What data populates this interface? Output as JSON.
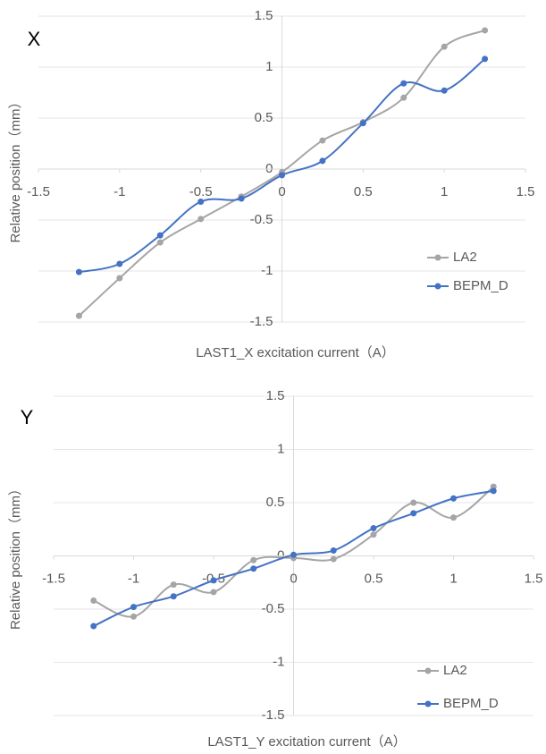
{
  "chart_data": [
    {
      "type": "line",
      "title": "X",
      "xlabel": "LAST1_X excitation current（A）",
      "ylabel": "Relative position（mm）",
      "x": [
        -1.25,
        -1,
        -0.75,
        -0.5,
        -0.25,
        0,
        0.25,
        0.5,
        0.75,
        1,
        1.25
      ],
      "series": [
        {
          "name": "LA2",
          "color": "#a5a5a5",
          "values": [
            -1.44,
            -1.07,
            -0.72,
            -0.49,
            -0.27,
            -0.03,
            0.28,
            0.46,
            0.7,
            1.2,
            1.36
          ]
        },
        {
          "name": "BEPM_D",
          "color": "#4472c4",
          "values": [
            -1.01,
            -0.93,
            -0.65,
            -0.32,
            -0.29,
            -0.06,
            0.08,
            0.45,
            0.84,
            0.77,
            1.08
          ]
        }
      ],
      "xlim": [
        -1.5,
        1.5
      ],
      "ylim": [
        -1.5,
        1.5
      ],
      "xticks": [
        -1.5,
        -1,
        -0.5,
        0,
        0.5,
        1,
        1.5
      ],
      "yticks": [
        -1.5,
        -1,
        -0.5,
        0,
        0.5,
        1,
        1.5
      ],
      "grid": true,
      "legend": "lower right"
    },
    {
      "type": "line",
      "title": "Y",
      "xlabel": "LAST1_Y excitation current（A）",
      "ylabel": "Relative position（mm）",
      "x": [
        -1.25,
        -1,
        -0.75,
        -0.5,
        -0.25,
        0,
        0.25,
        0.5,
        0.75,
        1,
        1.25
      ],
      "series": [
        {
          "name": "LA2",
          "color": "#a5a5a5",
          "values": [
            -0.42,
            -0.57,
            -0.27,
            -0.34,
            -0.04,
            -0.02,
            -0.03,
            0.2,
            0.5,
            0.36,
            0.65
          ]
        },
        {
          "name": "BEPM_D",
          "color": "#4472c4",
          "values": [
            -0.66,
            -0.48,
            -0.38,
            -0.23,
            -0.12,
            0.01,
            0.05,
            0.26,
            0.4,
            0.54,
            0.61
          ]
        }
      ],
      "xlim": [
        -1.5,
        1.5
      ],
      "ylim": [
        -1.5,
        1.5
      ],
      "xticks": [
        -1.5,
        -1,
        -0.5,
        0,
        0.5,
        1,
        1.5
      ],
      "yticks": [
        -1.5,
        -1,
        -0.5,
        0,
        0.5,
        1,
        1.5
      ],
      "grid": true,
      "legend": "lower right"
    }
  ]
}
